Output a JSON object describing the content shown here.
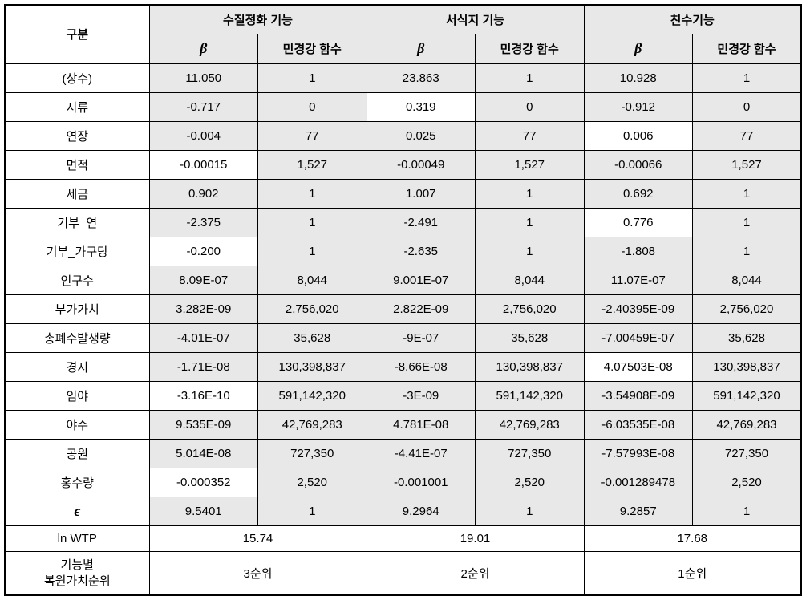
{
  "headers": {
    "gubun": "구분",
    "func1": "수질정화 기능",
    "func2": "서식지 기능",
    "func3": "친수기능",
    "beta": "β",
    "min": "민경강 함수"
  },
  "rows": [
    {
      "label": "(상수)",
      "c": [
        {
          "v": "11.050",
          "s": 1
        },
        {
          "v": "1",
          "s": 1
        },
        {
          "v": "23.863",
          "s": 1
        },
        {
          "v": "1",
          "s": 1
        },
        {
          "v": "10.928",
          "s": 1
        },
        {
          "v": "1",
          "s": 1
        }
      ]
    },
    {
      "label": "지류",
      "c": [
        {
          "v": "-0.717",
          "s": 1
        },
        {
          "v": "0",
          "s": 1
        },
        {
          "v": "0.319",
          "s": 0
        },
        {
          "v": "0",
          "s": 1
        },
        {
          "v": "-0.912",
          "s": 1
        },
        {
          "v": "0",
          "s": 1
        }
      ]
    },
    {
      "label": "연장",
      "c": [
        {
          "v": "-0.004",
          "s": 1
        },
        {
          "v": "77",
          "s": 1
        },
        {
          "v": "0.025",
          "s": 1
        },
        {
          "v": "77",
          "s": 1
        },
        {
          "v": "0.006",
          "s": 0
        },
        {
          "v": "77",
          "s": 1
        }
      ]
    },
    {
      "label": "면적",
      "c": [
        {
          "v": "-0.00015",
          "s": 0
        },
        {
          "v": "1,527",
          "s": 1
        },
        {
          "v": "-0.00049",
          "s": 1
        },
        {
          "v": "1,527",
          "s": 1
        },
        {
          "v": "-0.00066",
          "s": 1
        },
        {
          "v": "1,527",
          "s": 1
        }
      ]
    },
    {
      "label": "세금",
      "c": [
        {
          "v": "0.902",
          "s": 1
        },
        {
          "v": "1",
          "s": 1
        },
        {
          "v": "1.007",
          "s": 1
        },
        {
          "v": "1",
          "s": 1
        },
        {
          "v": "0.692",
          "s": 1
        },
        {
          "v": "1",
          "s": 1
        }
      ]
    },
    {
      "label": "기부_연",
      "c": [
        {
          "v": "-2.375",
          "s": 1
        },
        {
          "v": "1",
          "s": 1
        },
        {
          "v": "-2.491",
          "s": 1
        },
        {
          "v": "1",
          "s": 1
        },
        {
          "v": "0.776",
          "s": 0
        },
        {
          "v": "1",
          "s": 1
        }
      ]
    },
    {
      "label": "기부_가구당",
      "c": [
        {
          "v": "-0.200",
          "s": 0
        },
        {
          "v": "1",
          "s": 1
        },
        {
          "v": "-2.635",
          "s": 1
        },
        {
          "v": "1",
          "s": 1
        },
        {
          "v": "-1.808",
          "s": 1
        },
        {
          "v": "1",
          "s": 1
        }
      ]
    },
    {
      "label": "인구수",
      "c": [
        {
          "v": "8.09E-07",
          "s": 1
        },
        {
          "v": "8,044",
          "s": 1
        },
        {
          "v": "9.001E-07",
          "s": 1
        },
        {
          "v": "8,044",
          "s": 1
        },
        {
          "v": "11.07E-07",
          "s": 1
        },
        {
          "v": "8,044",
          "s": 1
        }
      ]
    },
    {
      "label": "부가가치",
      "c": [
        {
          "v": "3.282E-09",
          "s": 1
        },
        {
          "v": "2,756,020",
          "s": 1
        },
        {
          "v": "2.822E-09",
          "s": 1
        },
        {
          "v": "2,756,020",
          "s": 1
        },
        {
          "v": "-2.40395E-09",
          "s": 1
        },
        {
          "v": "2,756,020",
          "s": 1
        }
      ]
    },
    {
      "label": "총폐수발생량",
      "c": [
        {
          "v": "-4.01E-07",
          "s": 1
        },
        {
          "v": "35,628",
          "s": 1
        },
        {
          "v": "-9E-07",
          "s": 1
        },
        {
          "v": "35,628",
          "s": 1
        },
        {
          "v": "-7.00459E-07",
          "s": 1
        },
        {
          "v": "35,628",
          "s": 1
        }
      ]
    },
    {
      "label": "경지",
      "c": [
        {
          "v": "-1.71E-08",
          "s": 1
        },
        {
          "v": "130,398,837",
          "s": 1
        },
        {
          "v": "-8.66E-08",
          "s": 1
        },
        {
          "v": "130,398,837",
          "s": 1
        },
        {
          "v": "4.07503E-08",
          "s": 0
        },
        {
          "v": "130,398,837",
          "s": 1
        }
      ]
    },
    {
      "label": "임야",
      "c": [
        {
          "v": "-3.16E-10",
          "s": 0
        },
        {
          "v": "591,142,320",
          "s": 1
        },
        {
          "v": "-3E-09",
          "s": 1
        },
        {
          "v": "591,142,320",
          "s": 1
        },
        {
          "v": "-3.54908E-09",
          "s": 1
        },
        {
          "v": "591,142,320",
          "s": 1
        }
      ]
    },
    {
      "label": "야수",
      "c": [
        {
          "v": "9.535E-09",
          "s": 1
        },
        {
          "v": "42,769,283",
          "s": 1
        },
        {
          "v": "4.781E-08",
          "s": 1
        },
        {
          "v": "42,769,283",
          "s": 1
        },
        {
          "v": "-6.03535E-08",
          "s": 1
        },
        {
          "v": "42,769,283",
          "s": 1
        }
      ]
    },
    {
      "label": "공원",
      "c": [
        {
          "v": "5.014E-08",
          "s": 1
        },
        {
          "v": "727,350",
          "s": 1
        },
        {
          "v": "-4.41E-07",
          "s": 1
        },
        {
          "v": "727,350",
          "s": 1
        },
        {
          "v": "-7.57993E-08",
          "s": 1
        },
        {
          "v": "727,350",
          "s": 1
        }
      ]
    },
    {
      "label": "홍수량",
      "c": [
        {
          "v": "-0.000352",
          "s": 0
        },
        {
          "v": "2,520",
          "s": 1
        },
        {
          "v": "-0.001001",
          "s": 1
        },
        {
          "v": "2,520",
          "s": 1
        },
        {
          "v": "-0.001289478",
          "s": 1
        },
        {
          "v": "2,520",
          "s": 1
        }
      ]
    },
    {
      "label": "ε",
      "c": [
        {
          "v": "9.5401",
          "s": 1
        },
        {
          "v": "1",
          "s": 1
        },
        {
          "v": "9.2964",
          "s": 1
        },
        {
          "v": "1",
          "s": 1
        },
        {
          "v": "9.2857",
          "s": 1
        },
        {
          "v": "1",
          "s": 1
        }
      ],
      "eps": true
    }
  ],
  "lnwtp": {
    "label": "ln WTP",
    "v1": "15.74",
    "v2": "19.01",
    "v3": "17.68"
  },
  "rank": {
    "label_line1": "기능별",
    "label_line2": "복원가치순위",
    "v1": "3순위",
    "v2": "2순위",
    "v3": "1순위"
  }
}
